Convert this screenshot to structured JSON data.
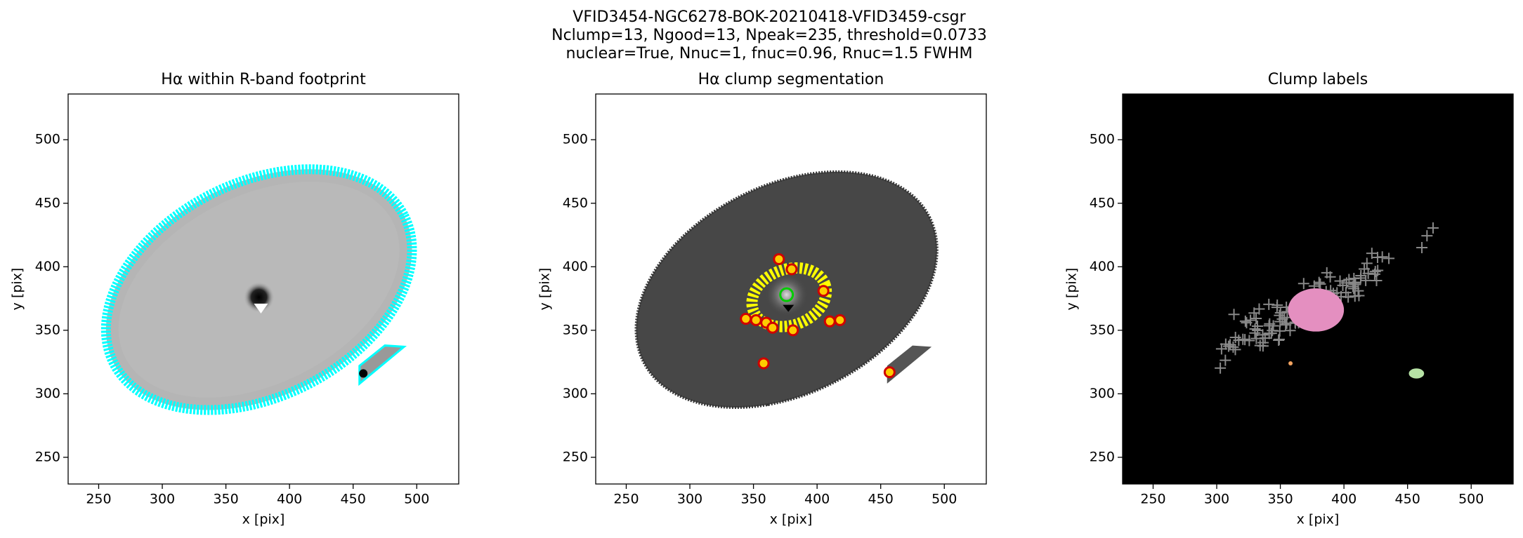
{
  "figure": {
    "title_lines": [
      "VFID3454-NGC6278-BOK-20210418-VFID3459-csgr",
      "Nclump=13, Ngood=13, Npeak=235, threshold=0.0733",
      "nuclear=True, Nnuc=1, fnuc=0.96, Rnuc=1.5 FWHM"
    ]
  },
  "chart_data": [
    {
      "type": "image",
      "title": "Hα within R-band footprint",
      "xlabel": "x [pix]",
      "ylabel": "y [pix]",
      "xlim": [
        226,
        533
      ],
      "ylim": [
        229,
        536
      ],
      "xticks": [
        250,
        300,
        350,
        400,
        450,
        500
      ],
      "yticks": [
        250,
        300,
        350,
        400,
        450,
        500
      ]
    },
    {
      "type": "image",
      "title": "Hα clump segmentation",
      "xlabel": "x [pix]",
      "ylabel": "y [pix]",
      "xlim": [
        226,
        533
      ],
      "ylim": [
        229,
        536
      ],
      "xticks": [
        250,
        300,
        350,
        400,
        450,
        500
      ],
      "yticks": [
        250,
        300,
        350,
        400,
        450,
        500
      ]
    },
    {
      "type": "image",
      "title": "Clump labels",
      "xlabel": "x [pix]",
      "ylabel": "y [pix]",
      "xlim": [
        226,
        533
      ],
      "ylim": [
        229,
        536
      ],
      "xticks": [
        250,
        300,
        350,
        400,
        450,
        500
      ],
      "yticks": [
        250,
        300,
        350,
        400,
        450,
        500
      ]
    }
  ]
}
